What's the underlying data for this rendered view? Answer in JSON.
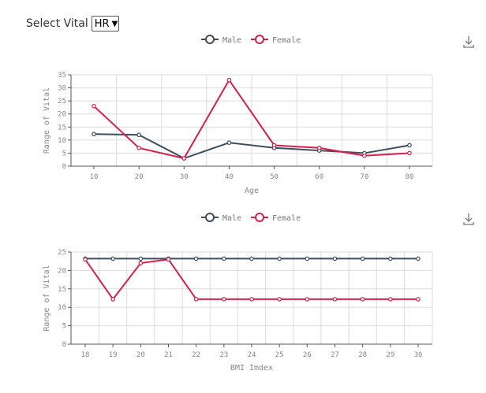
{
  "control": {
    "label": "Select Vital",
    "selected": "HR"
  },
  "colors": {
    "male": "#3e4d5c",
    "female": "#d6204c",
    "grid": "#dcdcdc",
    "axis": "#555555",
    "text": "#888888"
  },
  "icons": {
    "download": "download-icon"
  },
  "chart_data": [
    {
      "type": "line",
      "title": "",
      "xlabel": "Age",
      "ylabel": "Range of Vital",
      "categories": [
        "10",
        "20",
        "30",
        "40",
        "50",
        "60",
        "70",
        "80"
      ],
      "ylim": [
        0,
        35
      ],
      "yticks": [
        0,
        5,
        10,
        15,
        20,
        25,
        30,
        35
      ],
      "grid": true,
      "legend": "top-center",
      "series": [
        {
          "name": "Male",
          "values": [
            12.3,
            12,
            3,
            9,
            7,
            6,
            5,
            8
          ]
        },
        {
          "name": "Female",
          "values": [
            23,
            7,
            3,
            33,
            8,
            7,
            4,
            5
          ]
        }
      ]
    },
    {
      "type": "line",
      "title": "",
      "xlabel": "BMI Imdex",
      "ylabel": "Range of Vital",
      "categories": [
        "18",
        "19",
        "20",
        "21",
        "22",
        "23",
        "24",
        "25",
        "26",
        "27",
        "28",
        "29",
        "30"
      ],
      "ylim": [
        0,
        25
      ],
      "yticks": [
        0,
        5,
        10,
        15,
        20,
        25
      ],
      "grid": true,
      "legend": "top-center",
      "series": [
        {
          "name": "Male",
          "values": [
            23.2,
            23.2,
            23.2,
            23.2,
            23.2,
            23.2,
            23.2,
            23.2,
            23.2,
            23.2,
            23.2,
            23.2,
            23.2
          ]
        },
        {
          "name": "Female",
          "values": [
            23,
            12.2,
            22,
            23,
            12.2,
            12.2,
            12.2,
            12.2,
            12.2,
            12.2,
            12.2,
            12.2,
            12.2
          ]
        }
      ]
    }
  ]
}
